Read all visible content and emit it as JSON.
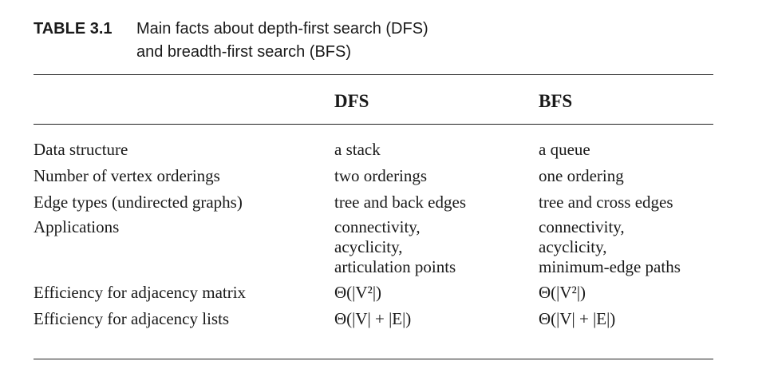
{
  "caption": {
    "label": "TABLE 3.1",
    "line1": "Main facts about depth-first search (DFS)",
    "line2": "and breadth-first search (BFS)"
  },
  "table": {
    "headers": [
      "",
      "DFS",
      "BFS"
    ],
    "rows": [
      {
        "label": "Data structure",
        "dfs": [
          "a stack"
        ],
        "bfs": [
          "a queue"
        ]
      },
      {
        "label": "Number of vertex orderings",
        "dfs": [
          "two orderings"
        ],
        "bfs": [
          "one ordering"
        ]
      },
      {
        "label": "Edge types (undirected graphs)",
        "dfs": [
          "tree and back edges"
        ],
        "bfs": [
          "tree and cross edges"
        ]
      },
      {
        "label": "Applications",
        "dfs": [
          "connectivity,",
          "acyclicity,",
          "articulation points"
        ],
        "bfs": [
          "connectivity,",
          "acyclicity,",
          "minimum-edge paths"
        ]
      },
      {
        "label": "Efficiency for adjacency matrix",
        "dfs": [
          "Θ(|V²|)"
        ],
        "bfs": [
          "Θ(|V²|)"
        ]
      },
      {
        "label": "Efficiency for adjacency lists",
        "dfs": [
          "Θ(|V| + |E|)"
        ],
        "bfs": [
          "Θ(|V| + |E|)"
        ]
      }
    ]
  }
}
